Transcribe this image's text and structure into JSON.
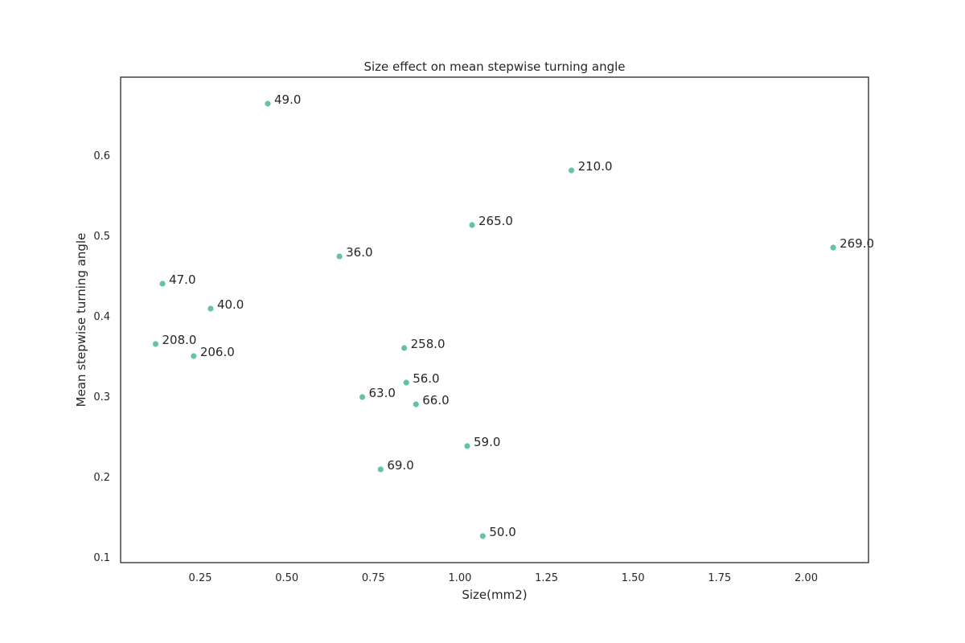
{
  "chart_data": {
    "type": "scatter",
    "title": "Size effect on mean stepwise turning angle",
    "xlabel": "Size(mm2)",
    "ylabel": "Mean stepwise turning angle",
    "xlim": [
      0.02,
      2.18
    ],
    "ylim": [
      0.093,
      0.697
    ],
    "xticks": [
      0.25,
      0.5,
      0.75,
      1.0,
      1.25,
      1.5,
      1.75,
      2.0
    ],
    "xtick_labels": [
      "0.25",
      "0.50",
      "0.75",
      "1.00",
      "1.25",
      "1.50",
      "1.75",
      "2.00"
    ],
    "yticks": [
      0.1,
      0.2,
      0.3,
      0.4,
      0.5,
      0.6
    ],
    "ytick_labels": [
      "0.1",
      "0.2",
      "0.3",
      "0.4",
      "0.5",
      "0.6"
    ],
    "grid": false,
    "marker_color": "#66c2a5",
    "points": [
      {
        "label": "49.0",
        "x": 0.445,
        "y": 0.664
      },
      {
        "label": "210.0",
        "x": 1.322,
        "y": 0.581
      },
      {
        "label": "265.0",
        "x": 1.035,
        "y": 0.513
      },
      {
        "label": "269.0",
        "x": 2.078,
        "y": 0.485
      },
      {
        "label": "36.0",
        "x": 0.652,
        "y": 0.474
      },
      {
        "label": "47.0",
        "x": 0.141,
        "y": 0.44
      },
      {
        "label": "40.0",
        "x": 0.28,
        "y": 0.409
      },
      {
        "label": "208.0",
        "x": 0.121,
        "y": 0.365
      },
      {
        "label": "206.0",
        "x": 0.231,
        "y": 0.35
      },
      {
        "label": "258.0",
        "x": 0.839,
        "y": 0.36
      },
      {
        "label": "56.0",
        "x": 0.845,
        "y": 0.317
      },
      {
        "label": "63.0",
        "x": 0.718,
        "y": 0.299
      },
      {
        "label": "66.0",
        "x": 0.873,
        "y": 0.29
      },
      {
        "label": "59.0",
        "x": 1.021,
        "y": 0.238
      },
      {
        "label": "69.0",
        "x": 0.771,
        "y": 0.209
      },
      {
        "label": "50.0",
        "x": 1.066,
        "y": 0.126
      }
    ]
  }
}
